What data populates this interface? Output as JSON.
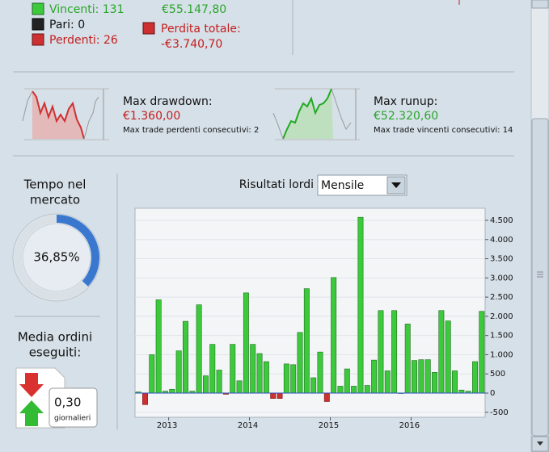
{
  "top": {
    "winners": "Vincenti: 131",
    "even": "Pari: 0",
    "losers": "Perdenti: 26",
    "profit": "€55.147,80",
    "loss_label": "Perdita totale:",
    "loss": "-€3.740,70"
  },
  "drawdown": {
    "label": "Max drawdown:",
    "value": "€1.360,00",
    "note": "Max trade perdenti consecutivi: 2"
  },
  "runup": {
    "label": "Max runup:",
    "value": "€52.320,60",
    "note": "Max trade vincenti consecutivi: 14"
  },
  "market_time": {
    "label": [
      "Tempo nel",
      "mercato"
    ],
    "value": "36,85%",
    "percent": 36.85
  },
  "orders": {
    "label": [
      "Media ordini",
      "eseguiti:"
    ],
    "value": "0,30",
    "unit": "giornalieri"
  },
  "chart_data": {
    "type": "bar",
    "title": "Risultati lordi",
    "period": "Mensile",
    "categories": [
      null,
      null,
      null,
      null,
      null,
      "2013",
      null,
      null,
      null,
      null,
      null,
      null,
      null,
      null,
      null,
      null,
      null,
      "2014",
      null,
      null,
      null,
      null,
      null,
      null,
      null,
      null,
      null,
      null,
      null,
      "2015",
      null,
      null,
      null,
      null,
      null,
      null,
      null,
      null,
      null,
      null,
      null,
      "2016",
      null,
      null,
      null,
      null,
      null,
      null,
      null,
      null,
      null,
      null
    ],
    "values": [
      30,
      -300,
      1000,
      2430,
      50,
      100,
      1100,
      1870,
      50,
      2300,
      450,
      1270,
      600,
      -30,
      1270,
      320,
      2610,
      1270,
      1030,
      820,
      -140,
      -140,
      760,
      740,
      1580,
      2720,
      400,
      1070,
      -220,
      3010,
      180,
      630,
      180,
      4580,
      200,
      860,
      2150,
      580,
      2150,
      0,
      1800,
      850,
      870,
      870,
      540,
      2150,
      1880,
      580,
      80,
      50,
      820,
      2130
    ],
    "colors": {
      "positive": "#3cc93c",
      "negative": "#cc3030"
    },
    "ylim": [
      -630,
      4815
    ],
    "yticks": [
      {
        "value": 4500,
        "label": "4.500"
      },
      {
        "value": 4000,
        "label": "4.000"
      },
      {
        "value": 3500,
        "label": "3.500"
      },
      {
        "value": 3000,
        "label": "3.000"
      },
      {
        "value": 2500,
        "label": "2.500"
      },
      {
        "value": 2000,
        "label": "2.000"
      },
      {
        "value": 1500,
        "label": "1.500"
      },
      {
        "value": 1000,
        "label": "1.000"
      },
      500,
      0,
      -500
    ],
    "grid": true
  }
}
